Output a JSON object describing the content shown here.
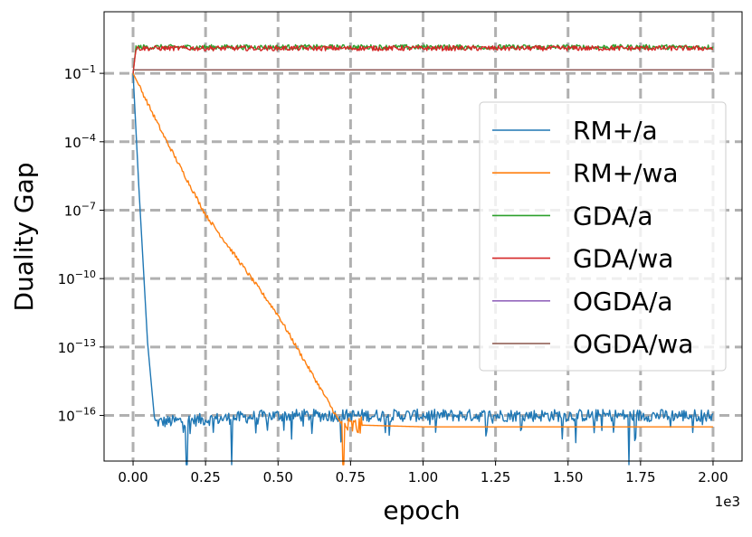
{
  "chart_data": {
    "type": "line",
    "title": "",
    "xlabel": "epoch",
    "ylabel": "Duality Gap",
    "x_scale_note": "1e3",
    "yscale": "log",
    "xlim": [
      -0.1,
      2.1
    ],
    "ylim_log10": [
      -18,
      1.7
    ],
    "grid": true,
    "legend_position": "center-right",
    "x_ticks": [
      {
        "value": 0.0,
        "label": "0.00"
      },
      {
        "value": 0.25,
        "label": "0.25"
      },
      {
        "value": 0.5,
        "label": "0.50"
      },
      {
        "value": 0.75,
        "label": "0.75"
      },
      {
        "value": 1.0,
        "label": "1.00"
      },
      {
        "value": 1.25,
        "label": "1.25"
      },
      {
        "value": 1.5,
        "label": "1.50"
      },
      {
        "value": 1.75,
        "label": "1.75"
      },
      {
        "value": 2.0,
        "label": "2.00"
      }
    ],
    "y_ticks": [
      {
        "exp": -1,
        "base": "10",
        "sup": "−1"
      },
      {
        "exp": -4,
        "base": "10",
        "sup": "−4"
      },
      {
        "exp": -7,
        "base": "10",
        "sup": "−7"
      },
      {
        "exp": -10,
        "base": "10",
        "sup": "−10"
      },
      {
        "exp": -13,
        "base": "10",
        "sup": "−13"
      },
      {
        "exp": -16,
        "base": "10",
        "sup": "−16"
      }
    ],
    "series": [
      {
        "name": "RM+/a",
        "color": "#1f77b4",
        "log10_points": [
          [
            0,
            -1.0
          ],
          [
            0.02,
            -6.0
          ],
          [
            0.05,
            -12.8
          ],
          [
            0.075,
            -16.3
          ],
          [
            0.5,
            -16.0
          ],
          [
            1.0,
            -16.0
          ],
          [
            1.5,
            -16.0
          ],
          [
            2.0,
            -16.0
          ]
        ],
        "noise": "floor ~1e-16 with occasional drops"
      },
      {
        "name": "RM+/wa",
        "color": "#ff7f0e",
        "log10_points": [
          [
            0,
            -1.0
          ],
          [
            0.1,
            -3.6
          ],
          [
            0.25,
            -7.2
          ],
          [
            0.5,
            -11.6
          ],
          [
            0.7,
            -16.0
          ],
          [
            0.72,
            -16.4
          ],
          [
            1.0,
            -16.5
          ],
          [
            2.0,
            -16.5
          ]
        ],
        "noise": "plateau ~3e-17 after 0.75e3"
      },
      {
        "name": "GDA/a",
        "color": "#2ca02c",
        "log10_points": [
          [
            0,
            -1.0
          ],
          [
            0.01,
            0.15
          ],
          [
            2.0,
            0.15
          ]
        ],
        "noise": "small fluctuation"
      },
      {
        "name": "GDA/wa",
        "color": "#d62728",
        "log10_points": [
          [
            0,
            -1.0
          ],
          [
            0.01,
            0.1
          ],
          [
            2.0,
            0.1
          ]
        ],
        "noise": "small fluctuation"
      },
      {
        "name": "OGDA/a",
        "color": "#9467bd",
        "log10_points": [
          [
            0,
            -0.85
          ],
          [
            2.0,
            -0.85
          ]
        ],
        "noise": "none"
      },
      {
        "name": "OGDA/wa",
        "color": "#8c564b",
        "log10_points": [
          [
            0,
            -0.85
          ],
          [
            2.0,
            -0.85
          ]
        ],
        "noise": "none"
      }
    ]
  }
}
